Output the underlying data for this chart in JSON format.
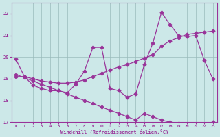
{
  "xlabel": "Windchill (Refroidissement éolien,°C)",
  "background_color": "#cce8e8",
  "grid_color": "#99bbbb",
  "line_color": "#993399",
  "line1_x": [
    0,
    1,
    2,
    3,
    4,
    5,
    6,
    7,
    8,
    9,
    10,
    11,
    12,
    13,
    14,
    15,
    16,
    17,
    18,
    19,
    20,
    21,
    22,
    23
  ],
  "line1_y": [
    19.9,
    19.1,
    18.7,
    18.55,
    18.45,
    18.45,
    18.35,
    18.75,
    19.35,
    20.45,
    20.45,
    18.55,
    18.45,
    18.15,
    18.3,
    19.65,
    20.65,
    22.05,
    21.5,
    21.0,
    20.95,
    21.0,
    19.85,
    19.0
  ],
  "line2_x": [
    0,
    1,
    2,
    3,
    4,
    5,
    6,
    7,
    8,
    9,
    10,
    11,
    12,
    13,
    14,
    15,
    16,
    17,
    18,
    19,
    20,
    21,
    22,
    23
  ],
  "line2_y": [
    19.1,
    19.1,
    19.0,
    18.9,
    18.85,
    18.8,
    18.8,
    18.85,
    18.95,
    19.1,
    19.25,
    19.4,
    19.55,
    19.65,
    19.8,
    19.95,
    20.1,
    20.5,
    20.75,
    20.9,
    21.05,
    21.1,
    21.15,
    21.2
  ],
  "line3_x": [
    0,
    1,
    2,
    3,
    4,
    5,
    6,
    7,
    8,
    9,
    10,
    11,
    12,
    13,
    14,
    15,
    16,
    17,
    18,
    19,
    20,
    21,
    22,
    23
  ],
  "line3_y": [
    19.2,
    19.05,
    18.9,
    18.75,
    18.6,
    18.45,
    18.3,
    18.15,
    18.0,
    17.85,
    17.7,
    17.55,
    17.4,
    17.25,
    17.1,
    17.4,
    17.25,
    17.1,
    17.0,
    16.95,
    16.9,
    16.85,
    16.8,
    17.0
  ],
  "ylim": [
    17,
    22.5
  ],
  "xlim": [
    -0.5,
    23.5
  ],
  "yticks": [
    17,
    18,
    19,
    20,
    21,
    22
  ]
}
